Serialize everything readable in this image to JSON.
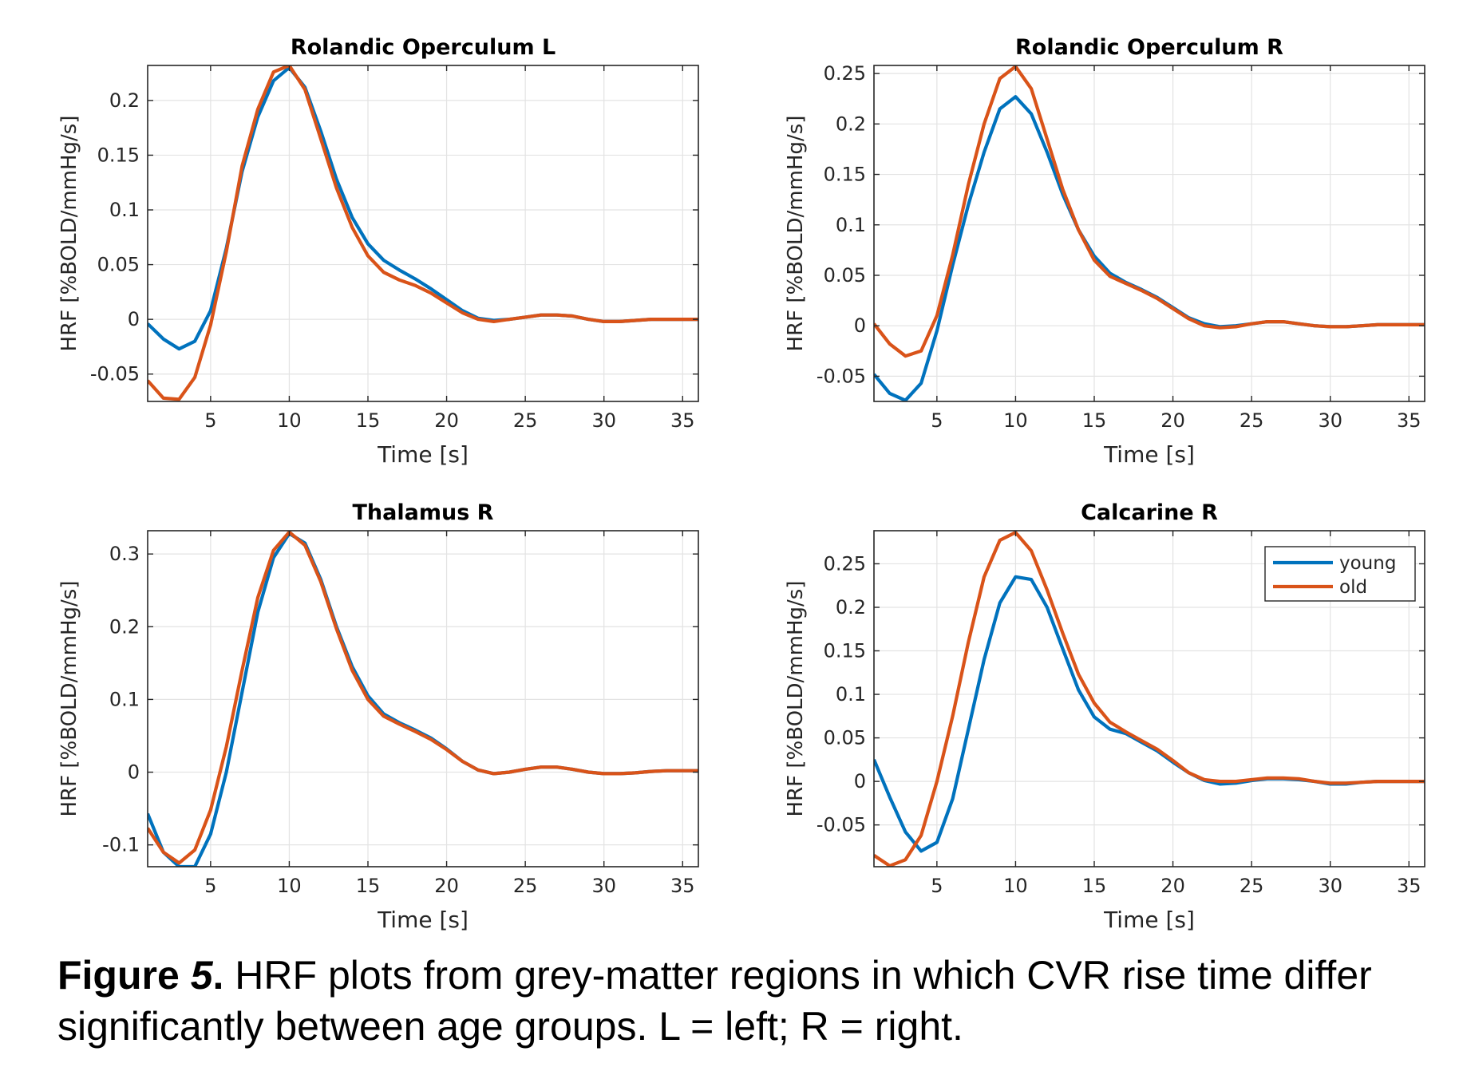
{
  "colors": {
    "young": "#0072BD",
    "old": "#D95319",
    "grid": "#e3e3e3",
    "axis": "#262626"
  },
  "legend": {
    "placement": "top-right",
    "entries": [
      "young",
      "old"
    ]
  },
  "caption": {
    "lead": "Figure ",
    "number": "5",
    "dot": ".",
    "text": " HRF plots from grey-matter regions in which CVR rise time differ significantly between age groups. L = left; R = right."
  },
  "chart_data": [
    {
      "type": "line",
      "title": "Rolandic Operculum L",
      "xlabel": "Time [s]",
      "ylabel": "HRF [%BOLD/mmHg/s]",
      "xlim": [
        1,
        36
      ],
      "ylim": [
        -0.075,
        0.232
      ],
      "xticks": [
        5,
        10,
        15,
        20,
        25,
        30,
        35
      ],
      "yticks": [
        -0.05,
        0,
        0.05,
        0.1,
        0.15,
        0.2
      ],
      "ytick_labels": [
        "-0.05",
        "0",
        "0.05",
        "0.1",
        "0.15",
        "0.2"
      ],
      "grid": true,
      "x": [
        1,
        2,
        3,
        4,
        5,
        6,
        7,
        8,
        9,
        10,
        11,
        12,
        13,
        14,
        15,
        16,
        17,
        18,
        19,
        20,
        21,
        22,
        23,
        24,
        25,
        26,
        27,
        28,
        29,
        30,
        31,
        32,
        33,
        34,
        35,
        36
      ],
      "series": [
        {
          "name": "young",
          "values": [
            -0.004,
            -0.018,
            -0.027,
            -0.02,
            0.008,
            0.065,
            0.135,
            0.185,
            0.218,
            0.23,
            0.212,
            0.172,
            0.128,
            0.093,
            0.069,
            0.054,
            0.045,
            0.037,
            0.028,
            0.018,
            0.008,
            0.001,
            -0.001,
            0.0,
            0.002,
            0.004,
            0.004,
            0.003,
            0.0,
            -0.002,
            -0.002,
            -0.001,
            0.0,
            0.0,
            0.0,
            0.0
          ]
        },
        {
          "name": "old",
          "values": [
            -0.056,
            -0.072,
            -0.073,
            -0.053,
            -0.005,
            0.062,
            0.14,
            0.192,
            0.226,
            0.232,
            0.21,
            0.165,
            0.12,
            0.084,
            0.058,
            0.043,
            0.036,
            0.031,
            0.024,
            0.015,
            0.006,
            0.0,
            -0.002,
            0.0,
            0.002,
            0.004,
            0.004,
            0.003,
            0.0,
            -0.002,
            -0.002,
            -0.001,
            0.0,
            0.0,
            0.0,
            0.0
          ]
        }
      ]
    },
    {
      "type": "line",
      "title": "Rolandic Operculum R",
      "xlabel": "Time [s]",
      "ylabel": "HRF [%BOLD/mmHg/s]",
      "xlim": [
        1,
        36
      ],
      "ylim": [
        -0.075,
        0.258
      ],
      "xticks": [
        5,
        10,
        15,
        20,
        25,
        30,
        35
      ],
      "yticks": [
        -0.05,
        0,
        0.05,
        0.1,
        0.15,
        0.2,
        0.25
      ],
      "ytick_labels": [
        "-0.05",
        "0",
        "0.05",
        "0.1",
        "0.15",
        "0.2",
        "0.25"
      ],
      "grid": true,
      "x": [
        1,
        2,
        3,
        4,
        5,
        6,
        7,
        8,
        9,
        10,
        11,
        12,
        13,
        14,
        15,
        16,
        17,
        18,
        19,
        20,
        21,
        22,
        23,
        24,
        25,
        26,
        27,
        28,
        29,
        30,
        31,
        32,
        33,
        34,
        35,
        36
      ],
      "series": [
        {
          "name": "young",
          "values": [
            -0.048,
            -0.067,
            -0.074,
            -0.057,
            -0.005,
            0.06,
            0.12,
            0.172,
            0.215,
            0.227,
            0.21,
            0.172,
            0.13,
            0.095,
            0.069,
            0.052,
            0.043,
            0.036,
            0.028,
            0.018,
            0.008,
            0.002,
            -0.001,
            0.0,
            0.002,
            0.004,
            0.004,
            0.002,
            0.0,
            -0.001,
            -0.001,
            0.0,
            0.001,
            0.001,
            0.001,
            0.001
          ]
        },
        {
          "name": "old",
          "values": [
            0.002,
            -0.018,
            -0.03,
            -0.025,
            0.01,
            0.07,
            0.14,
            0.2,
            0.245,
            0.257,
            0.235,
            0.185,
            0.135,
            0.095,
            0.065,
            0.049,
            0.042,
            0.035,
            0.027,
            0.017,
            0.007,
            0.0,
            -0.002,
            -0.001,
            0.002,
            0.004,
            0.004,
            0.002,
            0.0,
            -0.001,
            -0.001,
            0.0,
            0.001,
            0.001,
            0.001,
            0.001
          ]
        }
      ]
    },
    {
      "type": "line",
      "title": "Thalamus R",
      "xlabel": "Time [s]",
      "ylabel": "HRF [%BOLD/mmHg/s]",
      "xlim": [
        1,
        36
      ],
      "ylim": [
        -0.13,
        0.332
      ],
      "xticks": [
        5,
        10,
        15,
        20,
        25,
        30,
        35
      ],
      "yticks": [
        -0.1,
        0,
        0.1,
        0.2,
        0.3
      ],
      "ytick_labels": [
        "-0.1",
        "0",
        "0.1",
        "0.2",
        "0.3"
      ],
      "grid": true,
      "x": [
        1,
        2,
        3,
        4,
        5,
        6,
        7,
        8,
        9,
        10,
        11,
        12,
        13,
        14,
        15,
        16,
        17,
        18,
        19,
        20,
        21,
        22,
        23,
        24,
        25,
        26,
        27,
        28,
        29,
        30,
        31,
        32,
        33,
        34,
        35,
        36
      ],
      "series": [
        {
          "name": "young",
          "values": [
            -0.057,
            -0.11,
            -0.13,
            -0.13,
            -0.085,
            0.0,
            0.11,
            0.22,
            0.295,
            0.328,
            0.315,
            0.265,
            0.2,
            0.145,
            0.105,
            0.08,
            0.068,
            0.058,
            0.047,
            0.032,
            0.015,
            0.003,
            -0.002,
            0.0,
            0.004,
            0.007,
            0.007,
            0.004,
            0.0,
            -0.002,
            -0.002,
            -0.001,
            0.001,
            0.002,
            0.002,
            0.002
          ]
        },
        {
          "name": "old",
          "values": [
            -0.077,
            -0.11,
            -0.125,
            -0.107,
            -0.052,
            0.035,
            0.14,
            0.24,
            0.305,
            0.33,
            0.312,
            0.262,
            0.197,
            0.14,
            0.1,
            0.077,
            0.066,
            0.056,
            0.045,
            0.031,
            0.015,
            0.003,
            -0.002,
            0.0,
            0.004,
            0.007,
            0.007,
            0.004,
            0.0,
            -0.002,
            -0.002,
            -0.001,
            0.001,
            0.002,
            0.002,
            0.002
          ]
        }
      ]
    },
    {
      "type": "line",
      "title": "Calcarine R",
      "xlabel": "Time [s]",
      "ylabel": "HRF [%BOLD/mmHg/s]",
      "xlim": [
        1,
        36
      ],
      "ylim": [
        -0.098,
        0.288
      ],
      "xticks": [
        5,
        10,
        15,
        20,
        25,
        30,
        35
      ],
      "yticks": [
        -0.05,
        0,
        0.05,
        0.1,
        0.15,
        0.2,
        0.25
      ],
      "ytick_labels": [
        "-0.05",
        "0",
        "0.05",
        "0.1",
        "0.15",
        "0.2",
        "0.25"
      ],
      "grid": true,
      "legend": true,
      "x": [
        1,
        2,
        3,
        4,
        5,
        6,
        7,
        8,
        9,
        10,
        11,
        12,
        13,
        14,
        15,
        16,
        17,
        18,
        19,
        20,
        21,
        22,
        23,
        24,
        25,
        26,
        27,
        28,
        29,
        30,
        31,
        32,
        33,
        34,
        35,
        36
      ],
      "series": [
        {
          "name": "young",
          "values": [
            0.025,
            -0.018,
            -0.058,
            -0.08,
            -0.07,
            -0.02,
            0.06,
            0.14,
            0.205,
            0.235,
            0.232,
            0.2,
            0.152,
            0.105,
            0.074,
            0.06,
            0.055,
            0.045,
            0.035,
            0.022,
            0.01,
            0.001,
            -0.003,
            -0.002,
            0.001,
            0.003,
            0.003,
            0.002,
            0.0,
            -0.003,
            -0.003,
            -0.001,
            0.0,
            0.0,
            0.0,
            0.0
          ]
        },
        {
          "name": "old",
          "values": [
            -0.085,
            -0.097,
            -0.09,
            -0.062,
            0.0,
            0.075,
            0.16,
            0.235,
            0.277,
            0.286,
            0.265,
            0.22,
            0.17,
            0.123,
            0.09,
            0.068,
            0.057,
            0.047,
            0.037,
            0.024,
            0.01,
            0.002,
            0.0,
            0.0,
            0.002,
            0.004,
            0.004,
            0.003,
            0.0,
            -0.002,
            -0.002,
            -0.001,
            0.0,
            0.0,
            0.0,
            0.0
          ]
        }
      ]
    }
  ]
}
